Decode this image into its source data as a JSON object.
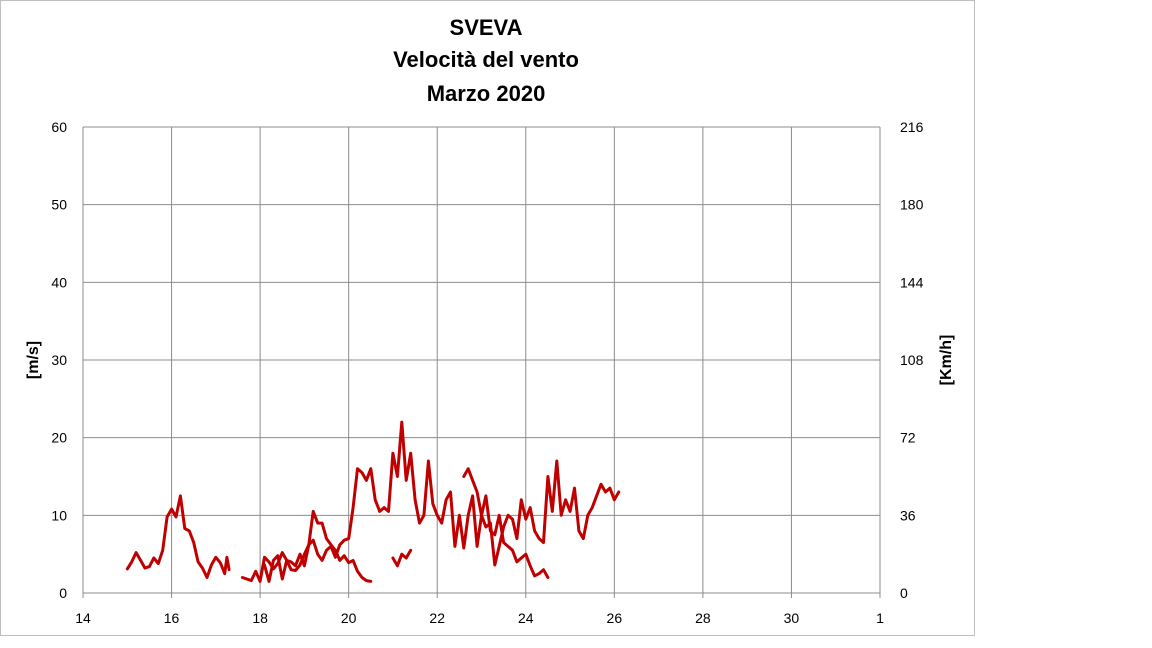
{
  "chart_data": {
    "type": "line",
    "title_lines": [
      "SVEVA",
      "Velocità del vento",
      "Marzo 2020"
    ],
    "ylabel_left": "[m/s]",
    "ylabel_right": "[Km/h]",
    "xlim": [
      14,
      32
    ],
    "ylim_left": [
      0,
      60
    ],
    "ylim_right": [
      0,
      216
    ],
    "x_ticks": [
      "14",
      "16",
      "18",
      "20",
      "22",
      "24",
      "26",
      "28",
      "30",
      "1"
    ],
    "y_left_ticks": [
      "0",
      "10",
      "20",
      "30",
      "40",
      "50",
      "60"
    ],
    "y_right_ticks": [
      "0",
      "36",
      "72",
      "108",
      "144",
      "180",
      "216"
    ],
    "grid": true,
    "line_color": "#c00000",
    "segments": [
      [
        [
          15.0,
          3.1
        ],
        [
          15.1,
          4.0
        ],
        [
          15.2,
          5.2
        ],
        [
          15.3,
          4.2
        ],
        [
          15.4,
          3.2
        ],
        [
          15.5,
          3.4
        ],
        [
          15.6,
          4.5
        ],
        [
          15.7,
          3.8
        ],
        [
          15.8,
          5.5
        ],
        [
          15.9,
          9.8
        ],
        [
          16.0,
          10.8
        ],
        [
          16.1,
          9.8
        ],
        [
          16.2,
          12.5
        ],
        [
          16.3,
          8.3
        ],
        [
          16.4,
          8.0
        ],
        [
          16.5,
          6.5
        ],
        [
          16.6,
          4.0
        ],
        [
          16.7,
          3.2
        ],
        [
          16.8,
          2.0
        ],
        [
          16.9,
          3.6
        ],
        [
          17.0,
          4.6
        ],
        [
          17.1,
          3.9
        ],
        [
          17.2,
          2.5
        ],
        [
          17.25,
          4.6
        ],
        [
          17.3,
          3.0
        ]
      ],
      [
        [
          17.6,
          2.0
        ],
        [
          17.7,
          1.8
        ],
        [
          17.8,
          1.6
        ],
        [
          17.9,
          2.8
        ],
        [
          18.0,
          1.5
        ],
        [
          18.1,
          4.6
        ],
        [
          18.2,
          4.0
        ],
        [
          18.3,
          3.1
        ],
        [
          18.4,
          3.8
        ],
        [
          18.5,
          5.2
        ],
        [
          18.6,
          4.2
        ],
        [
          18.7,
          4.0
        ],
        [
          18.8,
          3.5
        ],
        [
          18.9,
          5.0
        ],
        [
          19.0,
          3.5
        ],
        [
          19.1,
          6.2
        ],
        [
          19.2,
          10.5
        ],
        [
          19.3,
          9.0
        ],
        [
          19.4,
          9.0
        ],
        [
          19.5,
          7.0
        ],
        [
          19.6,
          6.2
        ],
        [
          19.7,
          5.5
        ],
        [
          19.8,
          4.2
        ],
        [
          19.9,
          4.8
        ],
        [
          20.0,
          3.9
        ],
        [
          20.1,
          4.2
        ],
        [
          20.2,
          2.8
        ],
        [
          20.3,
          2.0
        ],
        [
          20.4,
          1.6
        ],
        [
          20.5,
          1.5
        ]
      ],
      [
        [
          18.1,
          3.6
        ],
        [
          18.2,
          1.5
        ],
        [
          18.3,
          4.2
        ],
        [
          18.4,
          4.8
        ],
        [
          18.5,
          1.8
        ],
        [
          18.6,
          4.2
        ],
        [
          18.7,
          3.0
        ],
        [
          18.8,
          2.9
        ],
        [
          18.9,
          3.6
        ],
        [
          19.0,
          5.0
        ],
        [
          19.1,
          6.2
        ],
        [
          19.2,
          6.8
        ],
        [
          19.3,
          5.0
        ],
        [
          19.4,
          4.2
        ],
        [
          19.5,
          5.5
        ],
        [
          19.6,
          6.0
        ],
        [
          19.7,
          4.6
        ],
        [
          19.8,
          6.2
        ],
        [
          19.9,
          6.8
        ],
        [
          20.0,
          7.0
        ],
        [
          20.1,
          11.0
        ],
        [
          20.2,
          16.0
        ],
        [
          20.3,
          15.5
        ],
        [
          20.4,
          14.5
        ],
        [
          20.5,
          16.0
        ],
        [
          20.6,
          12.0
        ],
        [
          20.7,
          10.5
        ],
        [
          20.8,
          11.0
        ],
        [
          20.9,
          10.5
        ],
        [
          21.0,
          18.0
        ],
        [
          21.1,
          15.0
        ],
        [
          21.2,
          22.0
        ],
        [
          21.3,
          14.5
        ],
        [
          21.4,
          18.0
        ],
        [
          21.5,
          12.0
        ],
        [
          21.6,
          9.0
        ],
        [
          21.7,
          10.0
        ],
        [
          21.8,
          17.0
        ],
        [
          21.9,
          11.5
        ],
        [
          22.0,
          10.0
        ],
        [
          22.1,
          9.0
        ],
        [
          22.2,
          12.0
        ],
        [
          22.3,
          13.0
        ],
        [
          22.4,
          6.0
        ],
        [
          22.5,
          10.0
        ],
        [
          22.6,
          5.8
        ],
        [
          22.7,
          10.0
        ],
        [
          22.8,
          12.5
        ],
        [
          22.9,
          6.0
        ],
        [
          23.0,
          10.0
        ],
        [
          23.1,
          8.5
        ],
        [
          23.2,
          9.0
        ],
        [
          23.3,
          3.6
        ],
        [
          23.4,
          6.0
        ],
        [
          23.5,
          8.5
        ],
        [
          23.6,
          10.0
        ],
        [
          23.7,
          9.5
        ],
        [
          23.8,
          7.0
        ],
        [
          23.9,
          12.0
        ],
        [
          24.0,
          9.5
        ],
        [
          24.1,
          11.0
        ],
        [
          24.2,
          8.0
        ],
        [
          24.3,
          7.0
        ],
        [
          24.4,
          6.5
        ],
        [
          24.5,
          15.0
        ],
        [
          24.6,
          10.5
        ],
        [
          24.7,
          17.0
        ],
        [
          24.8,
          10.0
        ],
        [
          24.9,
          12.0
        ],
        [
          25.0,
          10.5
        ],
        [
          25.1,
          13.5
        ],
        [
          25.2,
          8.0
        ],
        [
          25.3,
          7.0
        ],
        [
          25.4,
          10.0
        ],
        [
          25.5,
          11.0
        ],
        [
          25.6,
          12.5
        ],
        [
          25.7,
          14.0
        ],
        [
          25.8,
          13.0
        ],
        [
          25.9,
          13.5
        ],
        [
          26.0,
          12.0
        ],
        [
          26.1,
          13.0
        ]
      ],
      [
        [
          22.6,
          15.0
        ],
        [
          22.7,
          16.0
        ],
        [
          22.8,
          14.5
        ],
        [
          22.9,
          13.0
        ],
        [
          23.0,
          10.0
        ],
        [
          23.1,
          12.5
        ],
        [
          23.2,
          8.0
        ],
        [
          23.3,
          7.5
        ],
        [
          23.4,
          10.0
        ],
        [
          23.5,
          6.5
        ],
        [
          23.6,
          6.0
        ],
        [
          23.7,
          5.5
        ],
        [
          23.8,
          4.0
        ],
        [
          23.9,
          4.5
        ],
        [
          24.0,
          5.0
        ],
        [
          24.1,
          3.5
        ],
        [
          24.2,
          2.2
        ],
        [
          24.3,
          2.5
        ],
        [
          24.4,
          3.0
        ],
        [
          24.5,
          2.0
        ]
      ],
      [
        [
          21.0,
          4.5
        ],
        [
          21.1,
          3.5
        ],
        [
          21.2,
          5.0
        ],
        [
          21.3,
          4.5
        ],
        [
          21.4,
          5.5
        ]
      ]
    ]
  }
}
